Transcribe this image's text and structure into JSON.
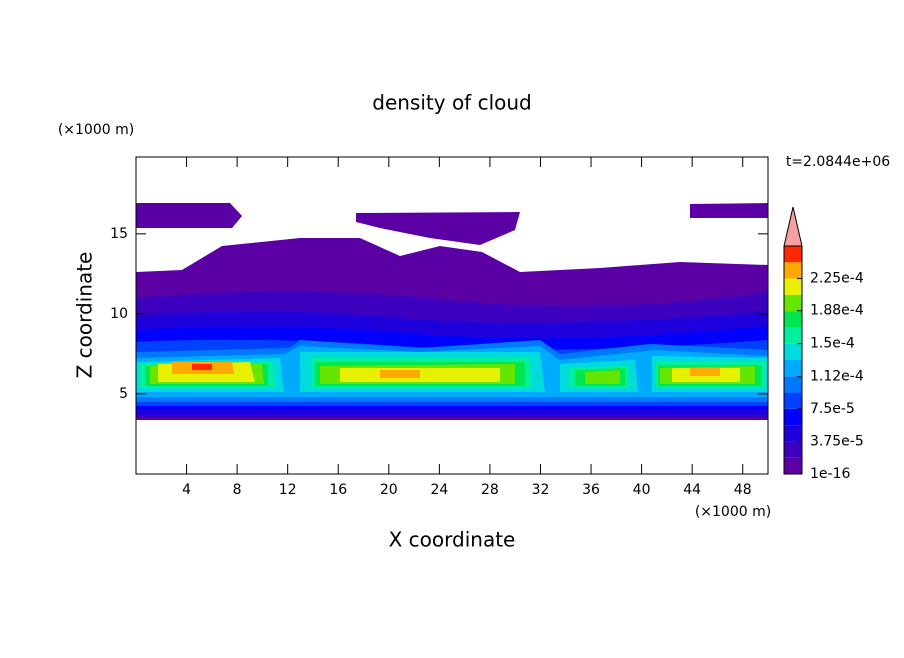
{
  "chart_data": {
    "type": "contour",
    "title": "density of cloud",
    "x_label": "X coordinate",
    "y_label": "Z coordinate",
    "x_unit_label": "(×1000 m)",
    "y_unit_label": "(×1000 m)",
    "time_label": "t=2.0844e+06",
    "xlim": [
      0,
      50
    ],
    "xticks": [
      4,
      8,
      12,
      16,
      20,
      24,
      28,
      32,
      36,
      40,
      44,
      48
    ],
    "ylim": [
      0,
      19.8
    ],
    "yticks": [
      5,
      10,
      15
    ],
    "colorbar": {
      "clim": [
        1e-16,
        0.0002625
      ],
      "ticks": [
        {
          "value": 1e-16,
          "label": "1e-16"
        },
        {
          "value": 3.75e-05,
          "label": "3.75e-5"
        },
        {
          "value": 7.5e-05,
          "label": "7.5e-5"
        },
        {
          "value": 0.000112,
          "label": "1.12e-4"
        },
        {
          "value": 0.00015,
          "label": "1.5e-4"
        },
        {
          "value": 0.000188,
          "label": "1.88e-4"
        },
        {
          "value": 0.000225,
          "label": "2.25e-4"
        }
      ],
      "colors": [
        "#5a00a5",
        "#3c00be",
        "#1e00dc",
        "#0000ff",
        "#0040ff",
        "#0078ff",
        "#00aaff",
        "#00dcdc",
        "#00f0a0",
        "#00e650",
        "#64e600",
        "#e6f000",
        "#ffaa00",
        "#ff2800"
      ],
      "extend_color": "#f4a0a0"
    }
  }
}
